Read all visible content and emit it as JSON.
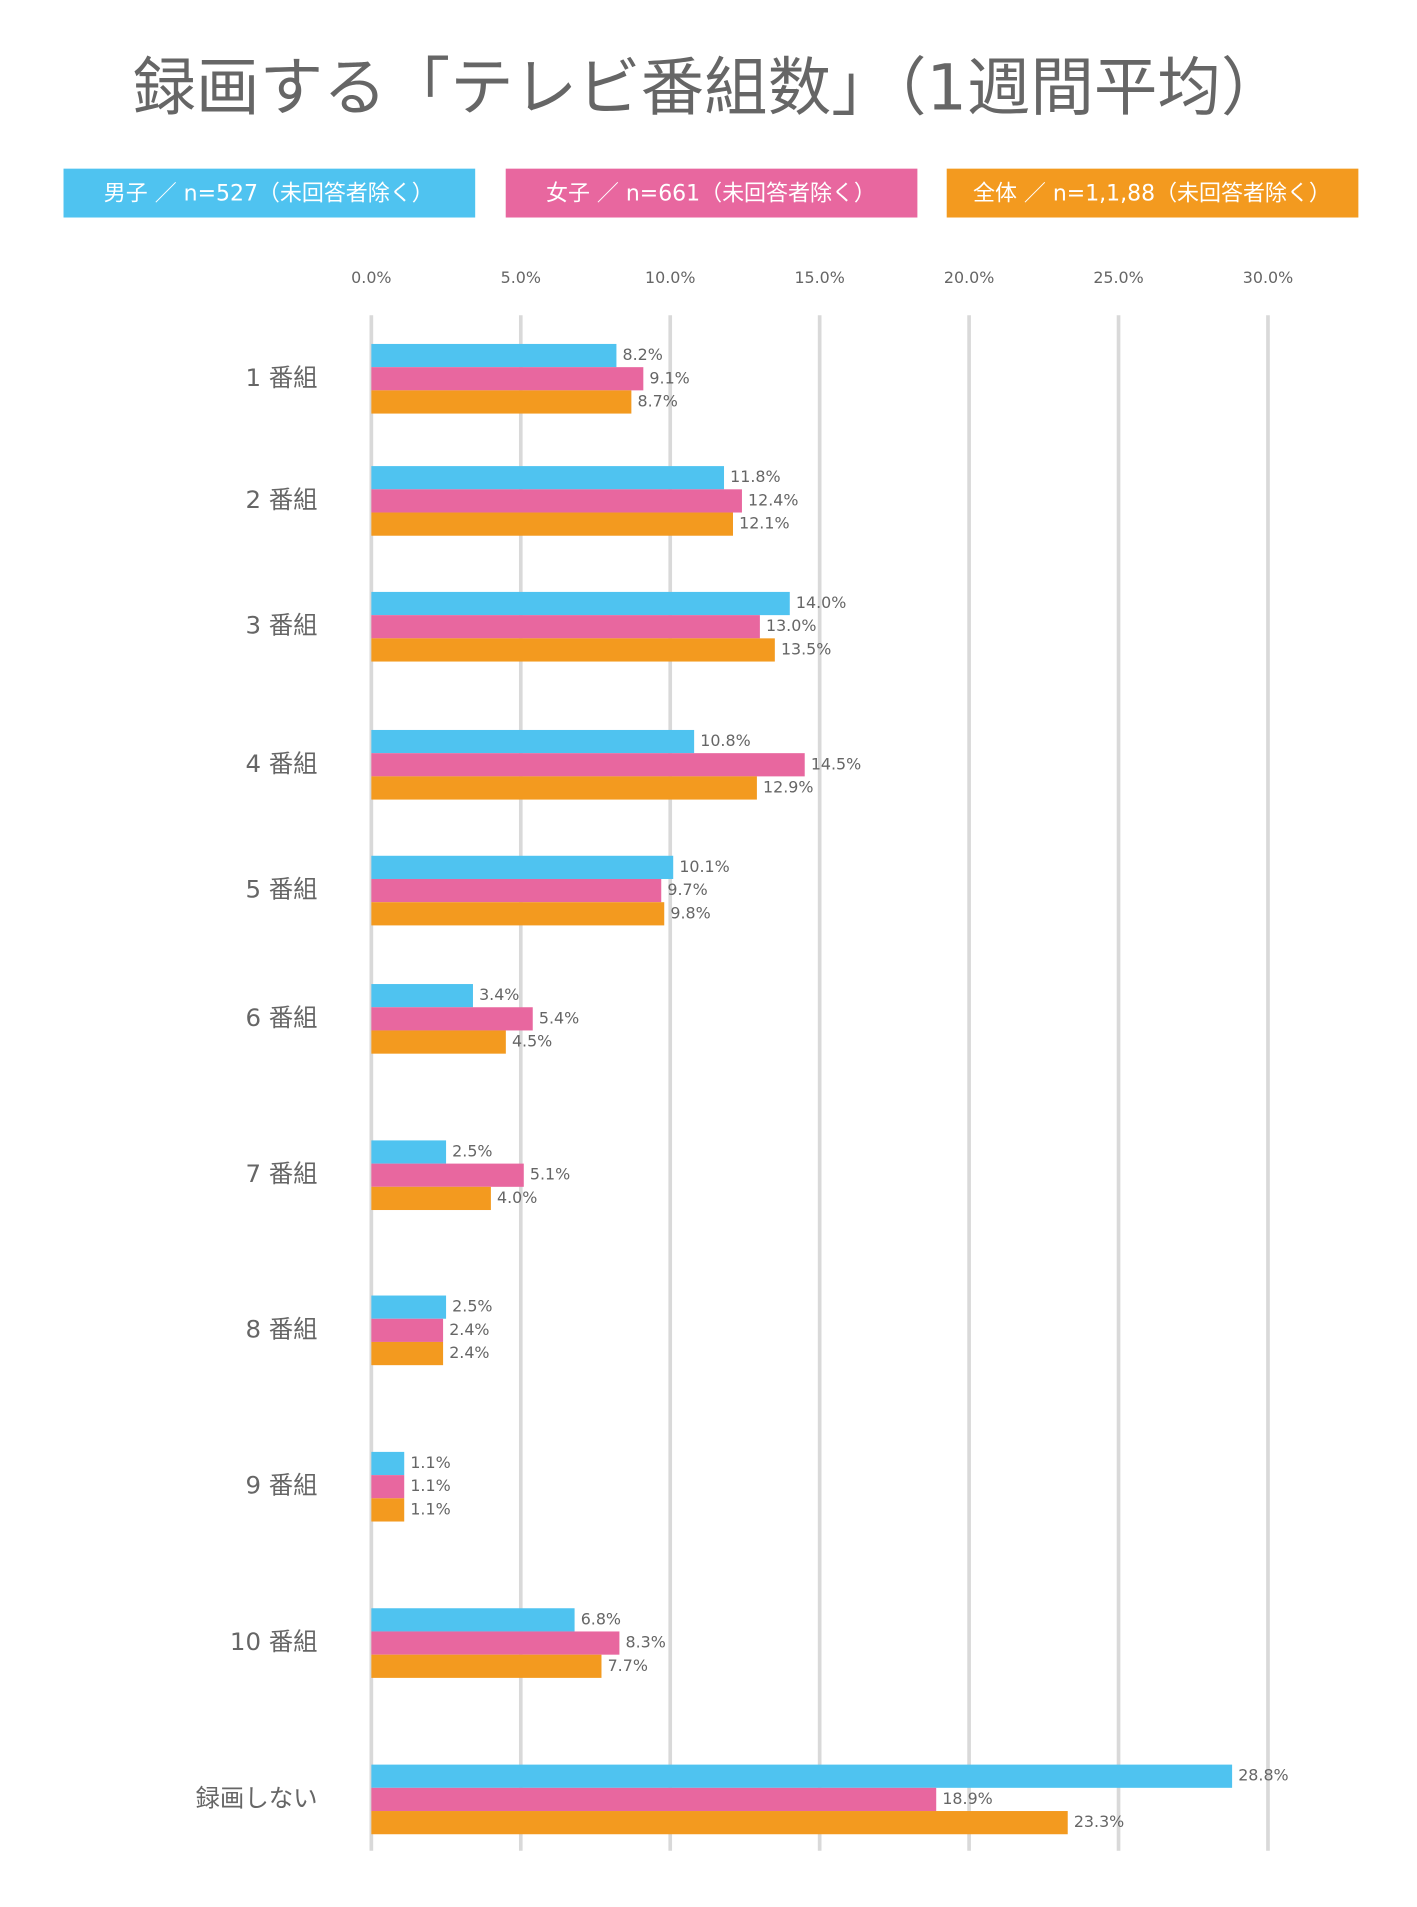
{
  "chart_data": {
    "type": "hbar",
    "title": "録画する「テレビ番組数」（1週間平均）",
    "categories": [
      "1 番組",
      "2 番組",
      "3 番組",
      "4 番組",
      "5 番組",
      "6 番組",
      "7 番組",
      "8 番組",
      "9 番組",
      "10 番組",
      "録画しない"
    ],
    "xlim": [
      0,
      30
    ],
    "xticks": [
      {
        "value": 0,
        "label": "0.0%"
      },
      {
        "value": 5,
        "label": "5.0%"
      },
      {
        "value": 10,
        "label": "10.0%"
      },
      {
        "value": 15,
        "label": "15.0%"
      },
      {
        "value": 20,
        "label": "20.0%"
      },
      {
        "value": 25,
        "label": "25.0%"
      },
      {
        "value": 30,
        "label": "30.0%"
      }
    ],
    "grid": true,
    "series": [
      {
        "name": "男子 ／ n=527（未回答者除く）",
        "color": "#4fc3f0",
        "values": [
          8.2,
          11.8,
          14.0,
          10.8,
          10.1,
          3.4,
          2.5,
          2.5,
          1.1,
          6.8,
          28.8
        ],
        "value_labels": [
          "8.2%",
          "11.8%",
          "14.0%",
          "10.8%",
          "10.1%",
          "3.4%",
          "2.5%",
          "2.5%",
          "1.1%",
          "6.8%",
          "28.8%"
        ]
      },
      {
        "name": "女子 ／ n=661（未回答者除く）",
        "color": "#e8679f",
        "values": [
          9.1,
          12.4,
          13.0,
          14.5,
          9.7,
          5.4,
          5.1,
          2.4,
          1.1,
          8.3,
          18.9
        ],
        "value_labels": [
          "9.1%",
          "12.4%",
          "13.0%",
          "14.5%",
          "9.7%",
          "5.4%",
          "5.1%",
          "2.4%",
          "1.1%",
          "8.3%",
          "18.9%"
        ]
      },
      {
        "name": "全体 ／ n=1,1,88（未回答者除く）",
        "color": "#f39a1f",
        "values": [
          8.7,
          12.1,
          13.5,
          12.9,
          9.8,
          4.5,
          4.0,
          2.4,
          1.1,
          7.7,
          23.3
        ],
        "value_labels": [
          "8.7%",
          "12.1%",
          "13.5%",
          "12.9%",
          "9.8%",
          "4.5%",
          "4.0%",
          "2.4%",
          "1.1%",
          "7.7%",
          "23.3%"
        ]
      }
    ]
  }
}
